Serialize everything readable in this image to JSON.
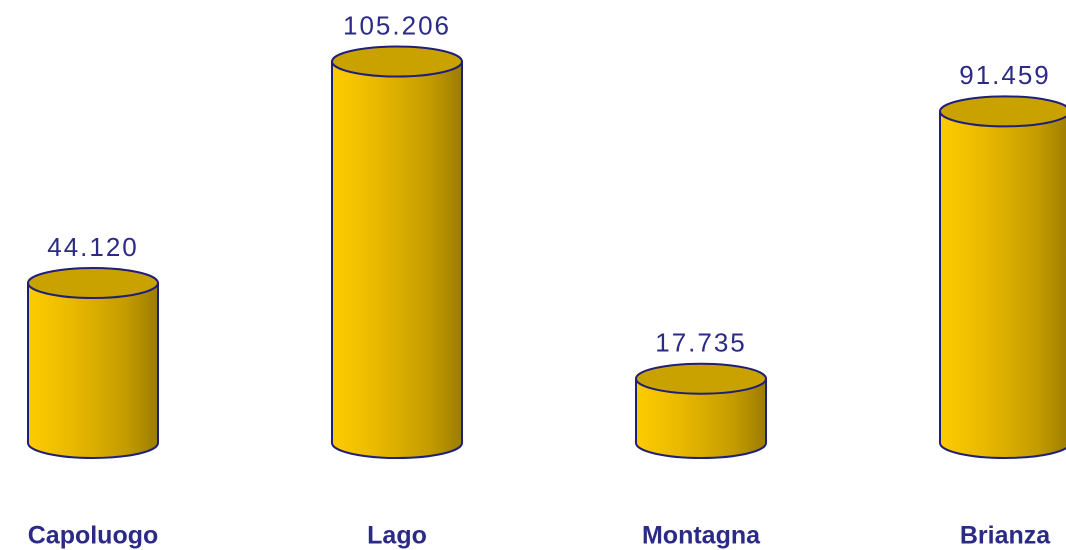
{
  "chart_data": {
    "type": "cylinder",
    "categories": [
      "Capoluogo",
      "Lago",
      "Montagna",
      "Brianza"
    ],
    "values": [
      44120,
      105206,
      17735,
      91459
    ],
    "value_labels": [
      "44.120",
      "105.206",
      "17.735",
      "91.459"
    ],
    "color": "#ffcc00",
    "ylim": [
      0,
      115000
    ]
  }
}
